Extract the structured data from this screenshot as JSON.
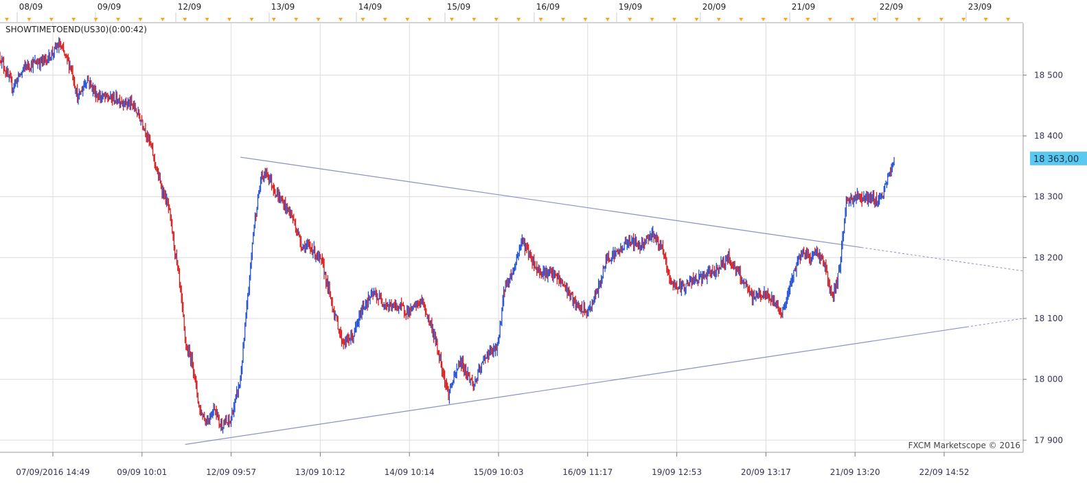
{
  "indicator_label": "SHOWTIMETOEND(US30)(0:00:42)",
  "watermark": "FXCM Marketscope © 2016",
  "current_price_label": "18 363,00",
  "colors": {
    "up": "#1f4fd8",
    "down": "#d81b1b",
    "trendline": "#8a90c8",
    "grid": "#dcdcdc",
    "price_badge": "#5bc8f0",
    "marker": "#f5a623",
    "axis_text": "#333355"
  },
  "chart_data": {
    "type": "line",
    "instrument": "US30",
    "top_dates": [
      "08/09",
      "09/09",
      "12/09",
      "13/09",
      "14/09",
      "15/09",
      "16/09",
      "19/09",
      "20/09",
      "21/09",
      "22/09",
      "23/09"
    ],
    "x_tick_labels": [
      "07/09/2016 14:49",
      "09/09 10:01",
      "12/09 09:57",
      "13/09 10:12",
      "14/09 10:14",
      "15/09 10:03",
      "16/09 11:17",
      "19/09 12:53",
      "20/09 13:17",
      "21/09 13:20",
      "22/09 14:52"
    ],
    "y_ticks": [
      17900,
      18000,
      18100,
      18200,
      18300,
      18400,
      18500
    ],
    "y_tick_labels": [
      "17 900",
      "18 000",
      "18 100",
      "18 200",
      "18 300",
      "18 400",
      "18 500"
    ],
    "ylim": [
      17880,
      18585
    ],
    "x_range": [
      0,
      100
    ],
    "grid": true,
    "price_path": [
      [
        0,
        18530
      ],
      [
        1.2,
        18480
      ],
      [
        2.5,
        18515
      ],
      [
        4.5,
        18525
      ],
      [
        5.8,
        18550
      ],
      [
        7,
        18510
      ],
      [
        7.6,
        18460
      ],
      [
        8.5,
        18495
      ],
      [
        9.5,
        18465
      ],
      [
        11.5,
        18460
      ],
      [
        13,
        18450
      ],
      [
        14,
        18420
      ],
      [
        14.8,
        18380
      ],
      [
        15.5,
        18330
      ],
      [
        16.5,
        18280
      ],
      [
        17.2,
        18200
      ],
      [
        17.6,
        18150
      ],
      [
        18.2,
        18050
      ],
      [
        18.8,
        18030
      ],
      [
        19.5,
        17950
      ],
      [
        20.2,
        17930
      ],
      [
        21,
        17955
      ],
      [
        21.5,
        17925
      ],
      [
        22.5,
        17930
      ],
      [
        23.5,
        18000
      ],
      [
        24.3,
        18150
      ],
      [
        24.8,
        18250
      ],
      [
        25.5,
        18330
      ],
      [
        26.1,
        18340
      ],
      [
        27,
        18305
      ],
      [
        28.5,
        18270
      ],
      [
        29.5,
        18220
      ],
      [
        30.5,
        18215
      ],
      [
        31.5,
        18190
      ],
      [
        32.5,
        18120
      ],
      [
        33.5,
        18060
      ],
      [
        34.5,
        18070
      ],
      [
        35.5,
        18120
      ],
      [
        36.5,
        18140
      ],
      [
        38,
        18120
      ],
      [
        39,
        18120
      ],
      [
        40,
        18110
      ],
      [
        41.2,
        18130
      ],
      [
        42.3,
        18080
      ],
      [
        43.2,
        18020
      ],
      [
        43.8,
        17975
      ],
      [
        45,
        18030
      ],
      [
        46.3,
        17990
      ],
      [
        47.5,
        18040
      ],
      [
        48.6,
        18050
      ],
      [
        49.3,
        18150
      ],
      [
        50.2,
        18180
      ],
      [
        51,
        18230
      ],
      [
        52.5,
        18180
      ],
      [
        54.3,
        18170
      ],
      [
        55.3,
        18150
      ],
      [
        56.3,
        18120
      ],
      [
        57.5,
        18110
      ],
      [
        58.5,
        18150
      ],
      [
        59.3,
        18200
      ],
      [
        60.5,
        18210
      ],
      [
        61.5,
        18230
      ],
      [
        62.5,
        18220
      ],
      [
        63.8,
        18240
      ],
      [
        64.8,
        18210
      ],
      [
        65.5,
        18160
      ],
      [
        66.5,
        18150
      ],
      [
        67.5,
        18160
      ],
      [
        69,
        18170
      ],
      [
        70,
        18180
      ],
      [
        71.2,
        18200
      ],
      [
        72.3,
        18170
      ],
      [
        73.5,
        18135
      ],
      [
        74.5,
        18140
      ],
      [
        75.5,
        18130
      ],
      [
        76.5,
        18110
      ],
      [
        77.5,
        18170
      ],
      [
        78.3,
        18210
      ],
      [
        79.2,
        18200
      ],
      [
        79.8,
        18210
      ],
      [
        80.6,
        18190
      ],
      [
        81.3,
        18130
      ],
      [
        82,
        18175
      ],
      [
        82.7,
        18290
      ],
      [
        83.5,
        18300
      ],
      [
        84.5,
        18300
      ],
      [
        85.5,
        18295
      ],
      [
        86.2,
        18300
      ],
      [
        86.9,
        18335
      ],
      [
        87.4,
        18363
      ]
    ],
    "upper_trendline": {
      "from": [
        23.5,
        18365
      ],
      "to": [
        100,
        18178
      ],
      "solid_until": 84.2
    },
    "lower_trendline": {
      "from": [
        18.1,
        17893
      ],
      "to": [
        100,
        18100
      ],
      "solid_until": 94.5
    },
    "last_price": 18363
  }
}
